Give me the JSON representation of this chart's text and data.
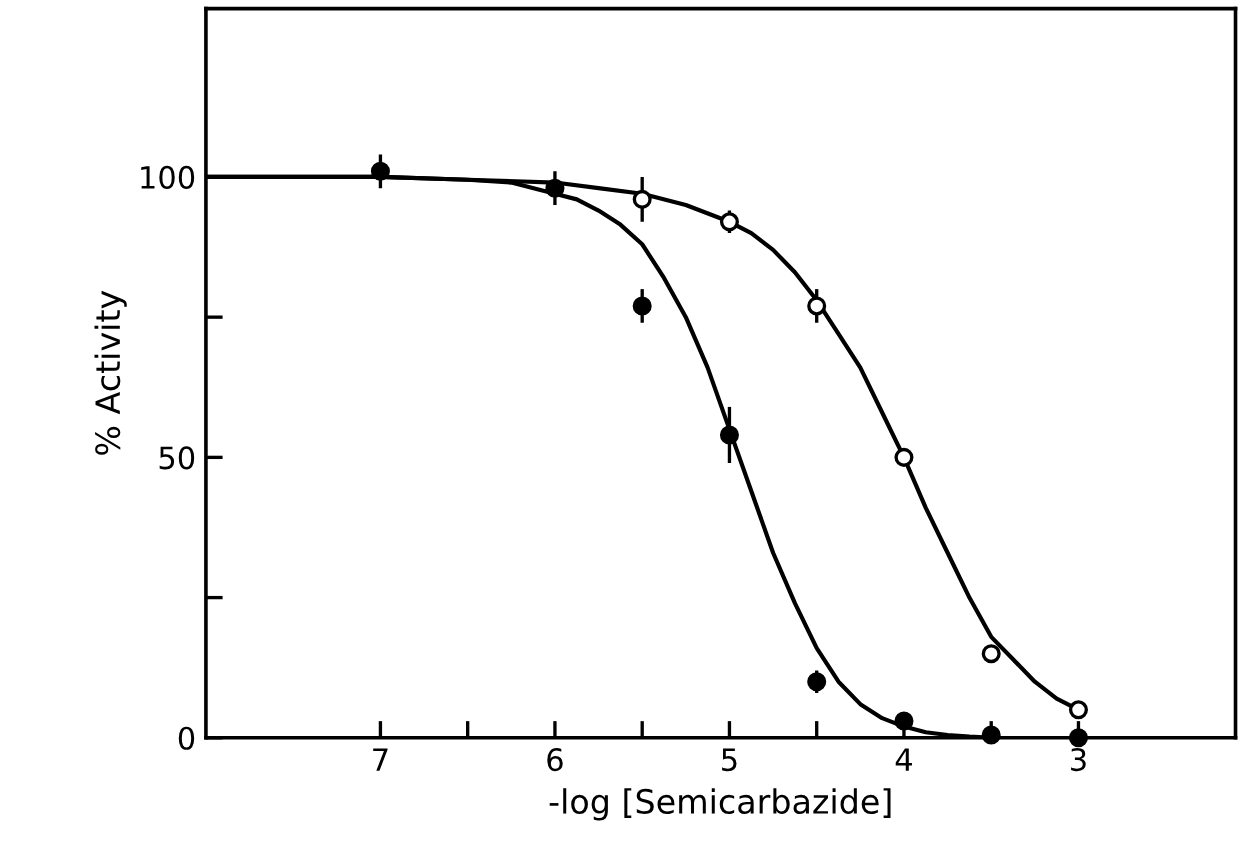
{
  "chart_data": {
    "type": "scatter",
    "xlabel": "-log [Semicarbazide]",
    "ylabel": "% Activity",
    "xlim": [
      8,
      2.1
    ],
    "ylim": [
      0,
      130
    ],
    "xticks": [
      7,
      {
        "value": 6.5,
        "label": null
      },
      6,
      {
        "value": 5.5,
        "label": null
      },
      5,
      {
        "value": 4.5,
        "label": null
      },
      4,
      {
        "value": 3.5,
        "label": null
      },
      3
    ],
    "yticks": [
      0,
      {
        "value": 25,
        "label": null
      },
      50,
      {
        "value": 75,
        "label": null
      },
      100
    ],
    "grid": false,
    "series": [
      {
        "type": "line",
        "marker": "none",
        "color": "#000000",
        "x": [
          8,
          7,
          6.5,
          6.25,
          6,
          5.875,
          5.75,
          5.625,
          5.5,
          5.375,
          5.25,
          5.125,
          5,
          4.875,
          4.75,
          4.625,
          4.5,
          4.375,
          4.25,
          4.125,
          4,
          3.875,
          3.75,
          3.625,
          3.5
        ],
        "values": [
          100,
          100,
          99.5,
          99,
          97,
          96,
          94,
          91.5,
          88,
          82,
          75,
          66,
          55,
          44,
          33,
          24,
          16,
          10,
          6,
          3.5,
          2,
          1,
          0.5,
          0.2,
          0
        ]
      },
      {
        "type": "line",
        "marker": "none",
        "color": "#000000",
        "x": [
          8,
          7,
          6.5,
          6,
          5.75,
          5.5,
          5.25,
          5,
          4.875,
          4.75,
          4.625,
          4.5,
          4.375,
          4.25,
          4.125,
          4,
          3.875,
          3.75,
          3.625,
          3.5,
          3.375,
          3.25,
          3.125,
          3
        ],
        "values": [
          100,
          100,
          99.5,
          99,
          98,
          97,
          95,
          92,
          90,
          87,
          83,
          78,
          72,
          66,
          58,
          50,
          41,
          33,
          25,
          18,
          14,
          10,
          7,
          5
        ]
      },
      {
        "marker": "circle",
        "color": "#000000",
        "x": [
          7,
          6,
          5.5,
          5,
          4.5,
          4,
          3.5,
          3
        ],
        "values": [
          101,
          98,
          77,
          54,
          10,
          3,
          0.5,
          0
        ],
        "errors": [
          3,
          3,
          3,
          5,
          2,
          null,
          null,
          null
        ]
      },
      {
        "marker": "circle",
        "color": "#ffffff",
        "x": [
          5.5,
          5,
          4.5,
          4,
          3.5,
          3
        ],
        "values": [
          96,
          92,
          77,
          50,
          15,
          5
        ],
        "errors": [
          4,
          2,
          3,
          null,
          null,
          null
        ]
      }
    ]
  }
}
